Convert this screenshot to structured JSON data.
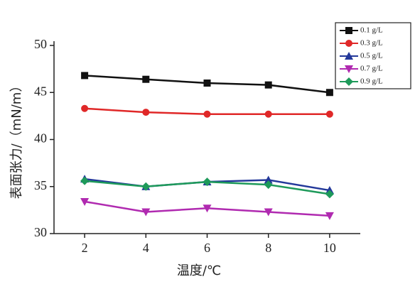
{
  "chart_data": {
    "type": "line",
    "x_label": "温度/℃",
    "y_label": "表面张力/（mN/m）",
    "x": [
      2,
      4,
      6,
      8,
      10
    ],
    "xlim": [
      1,
      11
    ],
    "xticks": [
      2,
      4,
      6,
      8,
      10
    ],
    "ylim": [
      30,
      50
    ],
    "yticks": [
      30,
      35,
      40,
      45,
      50
    ],
    "legend_position": "upper right",
    "series": [
      {
        "name": "0.1 g/L",
        "color": "#111111",
        "marker": "square",
        "values": [
          46.8,
          46.4,
          46.0,
          45.8,
          45.0
        ]
      },
      {
        "name": "0.3 g/L",
        "color": "#e02828",
        "marker": "circle",
        "values": [
          43.3,
          42.9,
          42.7,
          42.7,
          42.7
        ]
      },
      {
        "name": "0.5 g/L",
        "color": "#23389a",
        "marker": "triangle-up",
        "values": [
          35.8,
          35.0,
          35.5,
          35.7,
          34.6
        ]
      },
      {
        "name": "0.7 g/L",
        "color": "#b02ab0",
        "marker": "triangle-down",
        "values": [
          33.4,
          32.3,
          32.7,
          32.3,
          31.9
        ]
      },
      {
        "name": "0.9 g/L",
        "color": "#1e9a5a",
        "marker": "diamond",
        "values": [
          35.6,
          35.0,
          35.5,
          35.2,
          34.2
        ]
      }
    ]
  }
}
